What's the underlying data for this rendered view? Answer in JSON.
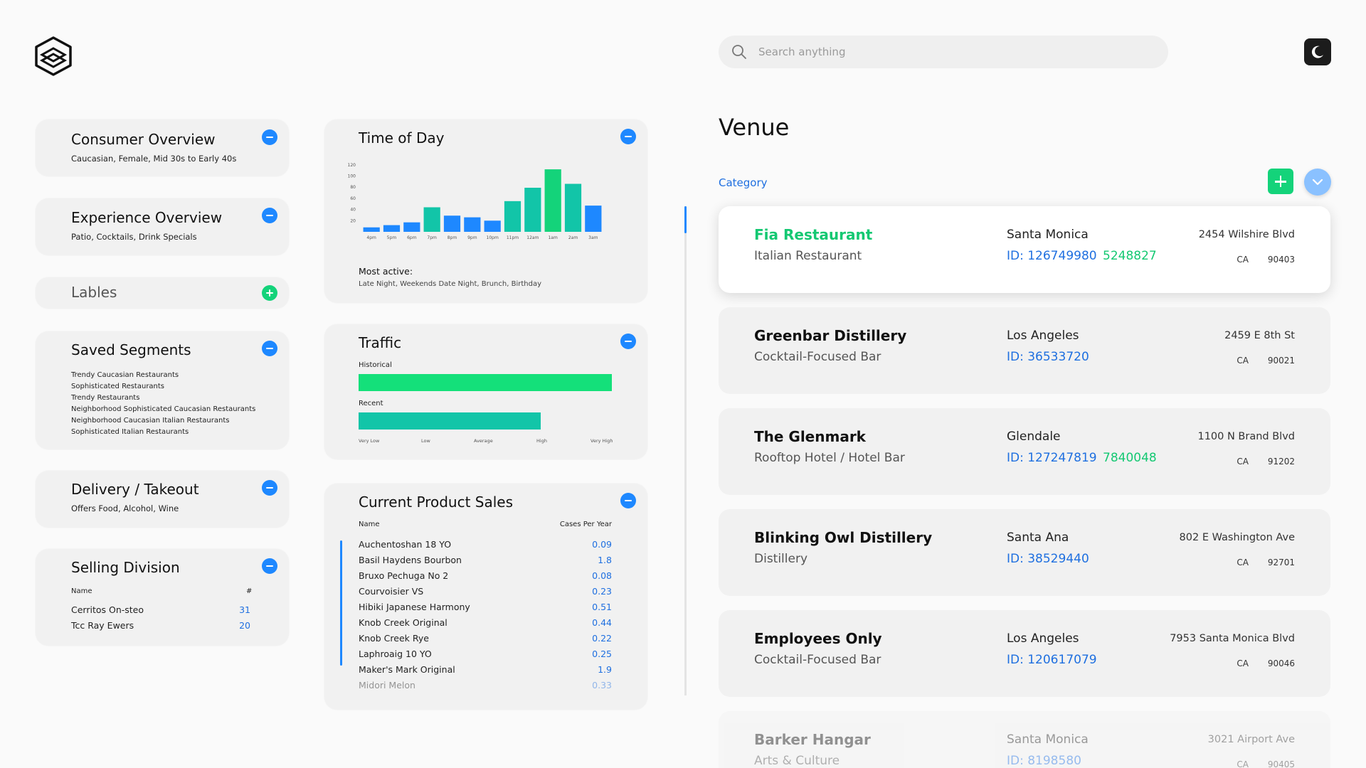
{
  "search": {
    "placeholder": "Search anything"
  },
  "left": {
    "consumer": {
      "title": "Consumer Overview",
      "sub": "Caucasian, Female, Mid 30s to Early 40s"
    },
    "experience": {
      "title": "Experience Overview",
      "sub": "Patio, Cocktails, Drink Specials"
    },
    "labels": {
      "title": "Lables"
    },
    "segments": {
      "title": "Saved Segments",
      "items": [
        "Trendy Caucasian Restaurants",
        "Sophisticated Restaurants",
        "Trendy Restaurants",
        "Neighborhood Sophisticated Caucasian Restaurants",
        "Neighborhood Caucasian Italian Restaurants",
        "Sophisticated Italian Restaurants"
      ]
    },
    "delivery": {
      "title": "Delivery / Takeout",
      "sub": "Offers Food, Alcohol, Wine"
    },
    "selling": {
      "title": "Selling Division",
      "col_name": "Name",
      "col_num": "#",
      "rows": [
        {
          "name": "Cerritos On-steo",
          "num": "31"
        },
        {
          "name": "Tcc Ray Ewers",
          "num": "20"
        }
      ]
    }
  },
  "middle": {
    "time_of_day": {
      "title": "Time of Day",
      "most_active_label": "Most active:",
      "most_active_value": "Late Night, Weekends Date Night, Brunch, Birthday"
    },
    "traffic": {
      "title": "Traffic",
      "historical_label": "Historical",
      "recent_label": "Recent",
      "ticks": [
        "Very Low",
        "Low",
        "Average",
        "High",
        "Very High"
      ],
      "historical_value": 1.0,
      "recent_value": 0.72
    },
    "product_sales": {
      "title": "Current Product Sales",
      "col_name": "Name",
      "col_value": "Cases Per Year",
      "rows": [
        {
          "name": "Auchentoshan 18 YO",
          "value": "0.09"
        },
        {
          "name": "Basil Haydens Bourbon",
          "value": "1.8"
        },
        {
          "name": "Bruxo Pechuga No 2",
          "value": "0.08"
        },
        {
          "name": "Courvoisier VS",
          "value": "0.23"
        },
        {
          "name": "Hibiki Japanese Harmony",
          "value": "0.51"
        },
        {
          "name": "Knob Creek Original",
          "value": "0.44"
        },
        {
          "name": "Knob Creek Rye",
          "value": "0.22"
        },
        {
          "name": "Laphroaig 10 YO",
          "value": "0.25"
        },
        {
          "name": "Maker's Mark Original",
          "value": "1.9"
        },
        {
          "name": "Midori Melon",
          "value": "0.33"
        }
      ]
    }
  },
  "chart_data": {
    "type": "bar",
    "title": "Time of Day",
    "categories": [
      "4pm",
      "5pm",
      "6pm",
      "7pm",
      "8pm",
      "9pm",
      "10pm",
      "11pm",
      "12am",
      "1am",
      "2am",
      "3am"
    ],
    "values": [
      8,
      12,
      17,
      44,
      29,
      26,
      20,
      55,
      79,
      112,
      86,
      47
    ],
    "ylim": [
      0,
      130
    ],
    "yticks": [
      20,
      40,
      60,
      80,
      100,
      120
    ],
    "colors": [
      "#1e88ff",
      "#1e88ff",
      "#1e88ff",
      "#12c5a8",
      "#1e88ff",
      "#1e88ff",
      "#1e88ff",
      "#12c5a8",
      "#12c5a8",
      "#14d37a",
      "#12c5a8",
      "#1e88ff"
    ]
  },
  "venue": {
    "title": "Venue",
    "category_label": "Category",
    "items": [
      {
        "name": "Fia Restaurant",
        "type": "Italian Restaurant",
        "city": "Santa Monica",
        "id": "ID: 126749980",
        "id2": "5248827",
        "address": "2454 Wilshire Blvd",
        "state": "CA",
        "zip": "90403"
      },
      {
        "name": "Greenbar Distillery",
        "type": "Cocktail-Focused Bar",
        "city": "Los Angeles",
        "id": "ID: 36533720",
        "id2": "",
        "address": "2459 E 8th St",
        "state": "CA",
        "zip": "90021"
      },
      {
        "name": "The Glenmark",
        "type": "Rooftop Hotel / Hotel Bar",
        "city": "Glendale",
        "id": "ID: 127247819",
        "id2": "7840048",
        "address": "1100 N Brand Blvd",
        "state": "CA",
        "zip": "91202"
      },
      {
        "name": "Blinking Owl Distillery",
        "type": "Distillery",
        "city": "Santa Ana",
        "id": "ID: 38529440",
        "id2": "",
        "address": "802 E Washington Ave",
        "state": "CA",
        "zip": "92701"
      },
      {
        "name": "Employees Only",
        "type": "Cocktail-Focused Bar",
        "city": "Los Angeles",
        "id": "ID: 120617079",
        "id2": "",
        "address": "7953 Santa Monica Blvd",
        "state": "CA",
        "zip": "90046"
      },
      {
        "name": "Barker Hangar",
        "type": "Arts & Culture",
        "city": "Santa Monica",
        "id": "ID: 8198580",
        "id2": "",
        "address": "3021 Airport Ave",
        "state": "CA",
        "zip": "90405"
      }
    ]
  },
  "colors": {
    "blue": "#1e88ff",
    "green": "#14d37a",
    "teal": "#12c5a8"
  },
  "icons": {
    "logo": "hexagon-logo-icon",
    "search": "search-icon",
    "theme": "moon-icon"
  }
}
